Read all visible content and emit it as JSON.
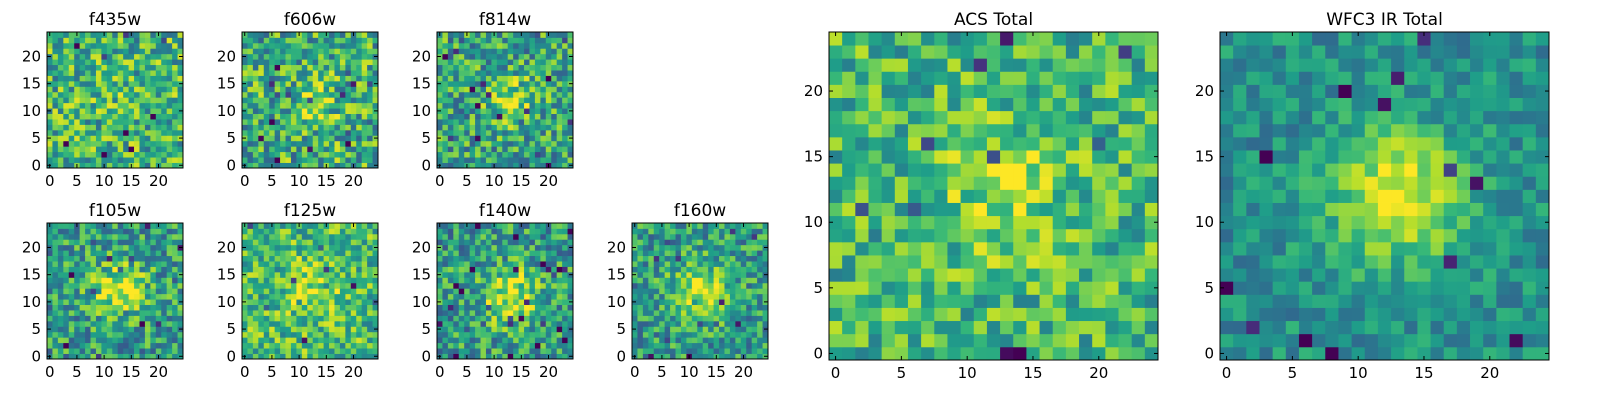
{
  "chart_data": {
    "type": "heatmap",
    "colormap": "viridis",
    "panels": [
      {
        "title": "f435w",
        "nx": 25,
        "ny": 25,
        "xlim": [
          -0.5,
          24.5
        ],
        "ylim": [
          -0.5,
          24.5
        ],
        "xticks": [
          0,
          5,
          10,
          15,
          20
        ],
        "yticks": [
          0,
          5,
          10,
          15,
          20
        ],
        "seed": 11,
        "base": 0.65,
        "noise": 0.3,
        "peak": 0.05,
        "center": [
          13,
          11
        ],
        "sigma": 3.5
      },
      {
        "title": "f606w",
        "nx": 25,
        "ny": 25,
        "xlim": [
          -0.5,
          24.5
        ],
        "ylim": [
          -0.5,
          24.5
        ],
        "xticks": [
          0,
          5,
          10,
          15,
          20
        ],
        "yticks": [
          0,
          5,
          10,
          15,
          20
        ],
        "seed": 23,
        "base": 0.62,
        "noise": 0.32,
        "peak": 0.15,
        "center": [
          13,
          11
        ],
        "sigma": 3.5
      },
      {
        "title": "f814w",
        "nx": 25,
        "ny": 25,
        "xlim": [
          -0.5,
          24.5
        ],
        "ylim": [
          -0.5,
          24.5
        ],
        "xticks": [
          0,
          5,
          10,
          15,
          20
        ],
        "yticks": [
          0,
          5,
          10,
          15,
          20
        ],
        "seed": 37,
        "base": 0.58,
        "noise": 0.3,
        "peak": 0.3,
        "center": [
          13,
          12
        ],
        "sigma": 3.0
      },
      {
        "title": "f105w",
        "nx": 25,
        "ny": 25,
        "xlim": [
          -0.5,
          24.5
        ],
        "ylim": [
          -0.5,
          24.5
        ],
        "xticks": [
          0,
          5,
          10,
          15,
          20
        ],
        "yticks": [
          0,
          5,
          10,
          15,
          20
        ],
        "seed": 41,
        "base": 0.55,
        "noise": 0.28,
        "peak": 0.4,
        "center": [
          13,
          12
        ],
        "sigma": 3.5
      },
      {
        "title": "f125w",
        "nx": 25,
        "ny": 25,
        "xlim": [
          -0.5,
          24.5
        ],
        "ylim": [
          -0.5,
          24.5
        ],
        "xticks": [
          0,
          5,
          10,
          15,
          20
        ],
        "yticks": [
          0,
          5,
          10,
          15,
          20
        ],
        "seed": 53,
        "base": 0.68,
        "noise": 0.26,
        "peak": 0.2,
        "center": [
          13,
          12
        ],
        "sigma": 3.5
      },
      {
        "title": "f140w",
        "nx": 25,
        "ny": 25,
        "xlim": [
          -0.5,
          24.5
        ],
        "ylim": [
          -0.5,
          24.5
        ],
        "xticks": [
          0,
          5,
          10,
          15,
          20
        ],
        "yticks": [
          0,
          5,
          10,
          15,
          20
        ],
        "seed": 67,
        "base": 0.55,
        "noise": 0.28,
        "peak": 0.4,
        "center": [
          13,
          11
        ],
        "sigma": 3.5
      },
      {
        "title": "f160w",
        "nx": 25,
        "ny": 25,
        "xlim": [
          -0.5,
          24.5
        ],
        "ylim": [
          -0.5,
          24.5
        ],
        "xticks": [
          0,
          5,
          10,
          15,
          20
        ],
        "yticks": [
          0,
          5,
          10,
          15,
          20
        ],
        "seed": 79,
        "base": 0.55,
        "noise": 0.26,
        "peak": 0.4,
        "center": [
          12,
          12
        ],
        "sigma": 3.5
      },
      {
        "title": "ACS Total",
        "nx": 25,
        "ny": 25,
        "xlim": [
          -0.5,
          24.5
        ],
        "ylim": [
          -0.5,
          24.5
        ],
        "xticks": [
          0,
          5,
          10,
          15,
          20
        ],
        "yticks": [
          0,
          5,
          10,
          15,
          20
        ],
        "seed": 97,
        "base": 0.66,
        "noise": 0.24,
        "peak": 0.2,
        "center": [
          13,
          12
        ],
        "sigma": 3.5
      },
      {
        "title": "WFC3 IR Total",
        "nx": 25,
        "ny": 25,
        "xlim": [
          -0.5,
          24.5
        ],
        "ylim": [
          -0.5,
          24.5
        ],
        "xticks": [
          0,
          5,
          10,
          15,
          20
        ],
        "yticks": [
          0,
          5,
          10,
          15,
          20
        ],
        "seed": 113,
        "base": 0.5,
        "noise": 0.16,
        "peak": 0.5,
        "center": [
          13,
          12
        ],
        "sigma": 3.5
      }
    ]
  }
}
